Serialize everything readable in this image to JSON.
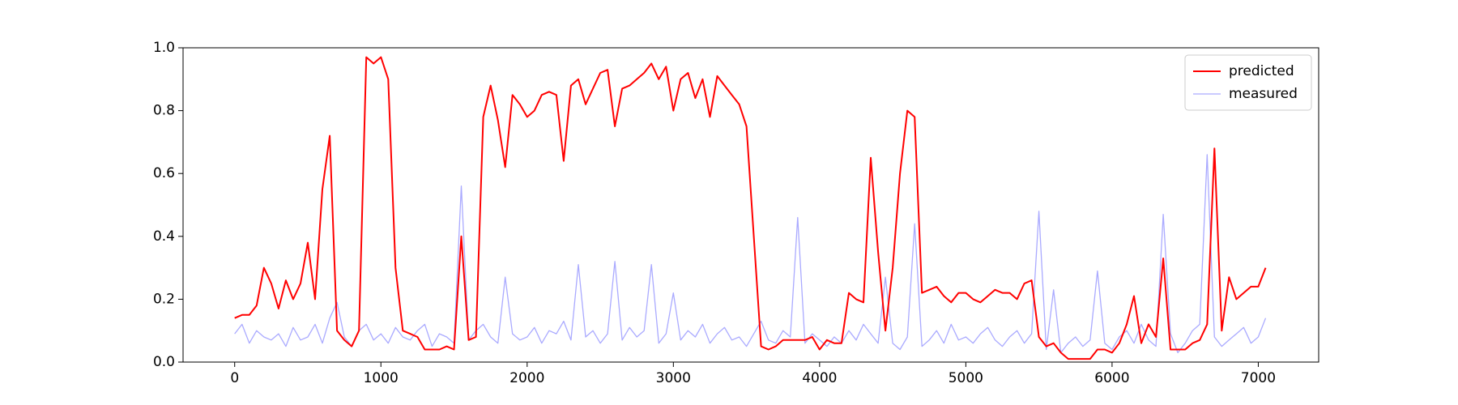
{
  "chart_data": {
    "type": "line",
    "x": [
      0,
      50,
      100,
      150,
      200,
      250,
      300,
      350,
      400,
      450,
      500,
      550,
      600,
      650,
      700,
      750,
      800,
      850,
      900,
      950,
      1000,
      1050,
      1100,
      1150,
      1200,
      1250,
      1300,
      1350,
      1400,
      1450,
      1500,
      1550,
      1600,
      1650,
      1700,
      1750,
      1800,
      1850,
      1900,
      1950,
      2000,
      2050,
      2100,
      2150,
      2200,
      2250,
      2300,
      2350,
      2400,
      2450,
      2500,
      2550,
      2600,
      2650,
      2700,
      2750,
      2800,
      2850,
      2900,
      2950,
      3000,
      3050,
      3100,
      3150,
      3200,
      3250,
      3300,
      3350,
      3400,
      3450,
      3500,
      3550,
      3600,
      3650,
      3700,
      3750,
      3800,
      3850,
      3900,
      3950,
      4000,
      4050,
      4100,
      4150,
      4200,
      4250,
      4300,
      4350,
      4400,
      4450,
      4500,
      4550,
      4600,
      4650,
      4700,
      4750,
      4800,
      4850,
      4900,
      4950,
      5000,
      5050,
      5100,
      5150,
      5200,
      5250,
      5300,
      5350,
      5400,
      5450,
      5500,
      5550,
      5600,
      5650,
      5700,
      5750,
      5800,
      5850,
      5900,
      5950,
      6000,
      6050,
      6100,
      6150,
      6200,
      6250,
      6300,
      6350,
      6400,
      6450,
      6500,
      6550,
      6600,
      6650,
      6700,
      6750,
      6800,
      6850,
      6900,
      6950,
      7000,
      7050
    ],
    "series": [
      {
        "name": "predicted",
        "color": "#ff0000",
        "values": [
          0.14,
          0.15,
          0.15,
          0.18,
          0.3,
          0.25,
          0.17,
          0.26,
          0.2,
          0.25,
          0.38,
          0.2,
          0.55,
          0.72,
          0.1,
          0.07,
          0.05,
          0.1,
          0.97,
          0.95,
          0.97,
          0.9,
          0.3,
          0.1,
          0.09,
          0.08,
          0.04,
          0.04,
          0.04,
          0.05,
          0.04,
          0.4,
          0.07,
          0.08,
          0.78,
          0.88,
          0.77,
          0.62,
          0.85,
          0.82,
          0.78,
          0.8,
          0.85,
          0.86,
          0.85,
          0.64,
          0.88,
          0.9,
          0.82,
          0.87,
          0.92,
          0.93,
          0.75,
          0.87,
          0.88,
          0.9,
          0.92,
          0.95,
          0.9,
          0.94,
          0.8,
          0.9,
          0.92,
          0.84,
          0.9,
          0.78,
          0.91,
          0.88,
          0.85,
          0.82,
          0.75,
          0.4,
          0.05,
          0.04,
          0.05,
          0.07,
          0.07,
          0.07,
          0.07,
          0.08,
          0.04,
          0.07,
          0.06,
          0.06,
          0.22,
          0.2,
          0.19,
          0.65,
          0.35,
          0.1,
          0.3,
          0.6,
          0.8,
          0.78,
          0.22,
          0.23,
          0.24,
          0.21,
          0.19,
          0.22,
          0.22,
          0.2,
          0.19,
          0.21,
          0.23,
          0.22,
          0.22,
          0.2,
          0.25,
          0.26,
          0.08,
          0.05,
          0.06,
          0.03,
          0.01,
          0.01,
          0.01,
          0.01,
          0.04,
          0.04,
          0.03,
          0.06,
          0.12,
          0.21,
          0.06,
          0.12,
          0.08,
          0.33,
          0.04,
          0.04,
          0.04,
          0.06,
          0.07,
          0.12,
          0.68,
          0.1,
          0.27,
          0.2,
          0.22,
          0.24,
          0.24,
          0.3
        ]
      },
      {
        "name": "measured",
        "color": "#aaaaff",
        "values": [
          0.09,
          0.12,
          0.06,
          0.1,
          0.08,
          0.07,
          0.09,
          0.05,
          0.11,
          0.07,
          0.08,
          0.12,
          0.06,
          0.14,
          0.19,
          0.08,
          0.05,
          0.1,
          0.12,
          0.07,
          0.09,
          0.06,
          0.11,
          0.08,
          0.07,
          0.1,
          0.12,
          0.05,
          0.09,
          0.08,
          0.06,
          0.56,
          0.07,
          0.1,
          0.12,
          0.08,
          0.06,
          0.27,
          0.09,
          0.07,
          0.08,
          0.11,
          0.06,
          0.1,
          0.09,
          0.13,
          0.07,
          0.31,
          0.08,
          0.1,
          0.06,
          0.09,
          0.32,
          0.07,
          0.11,
          0.08,
          0.1,
          0.31,
          0.06,
          0.09,
          0.22,
          0.07,
          0.1,
          0.08,
          0.12,
          0.06,
          0.09,
          0.11,
          0.07,
          0.08,
          0.05,
          0.09,
          0.13,
          0.07,
          0.06,
          0.1,
          0.08,
          0.46,
          0.06,
          0.09,
          0.07,
          0.05,
          0.08,
          0.06,
          0.1,
          0.07,
          0.12,
          0.09,
          0.06,
          0.27,
          0.06,
          0.04,
          0.08,
          0.44,
          0.05,
          0.07,
          0.1,
          0.06,
          0.12,
          0.07,
          0.08,
          0.06,
          0.09,
          0.11,
          0.07,
          0.05,
          0.08,
          0.1,
          0.06,
          0.09,
          0.48,
          0.04,
          0.23,
          0.03,
          0.06,
          0.08,
          0.05,
          0.07,
          0.29,
          0.06,
          0.04,
          0.08,
          0.1,
          0.06,
          0.12,
          0.07,
          0.05,
          0.47,
          0.09,
          0.03,
          0.06,
          0.1,
          0.12,
          0.66,
          0.08,
          0.05,
          0.07,
          0.09,
          0.11,
          0.06,
          0.08,
          0.14
        ]
      }
    ],
    "xlim": [
      -353,
      7413
    ],
    "xticks": [
      0,
      1000,
      2000,
      3000,
      4000,
      5000,
      6000,
      7000
    ],
    "ylim": [
      0,
      1
    ],
    "yticks": [
      {
        "value": 0,
        "label": "0.0"
      },
      {
        "value": 0.2,
        "label": "0.2"
      },
      {
        "value": 0.4,
        "label": "0.4"
      },
      {
        "value": 0.6,
        "label": "0.6"
      },
      {
        "value": 0.8,
        "label": "0.8"
      },
      {
        "value": 1,
        "label": "1.0"
      }
    ],
    "legend": "upper right"
  }
}
